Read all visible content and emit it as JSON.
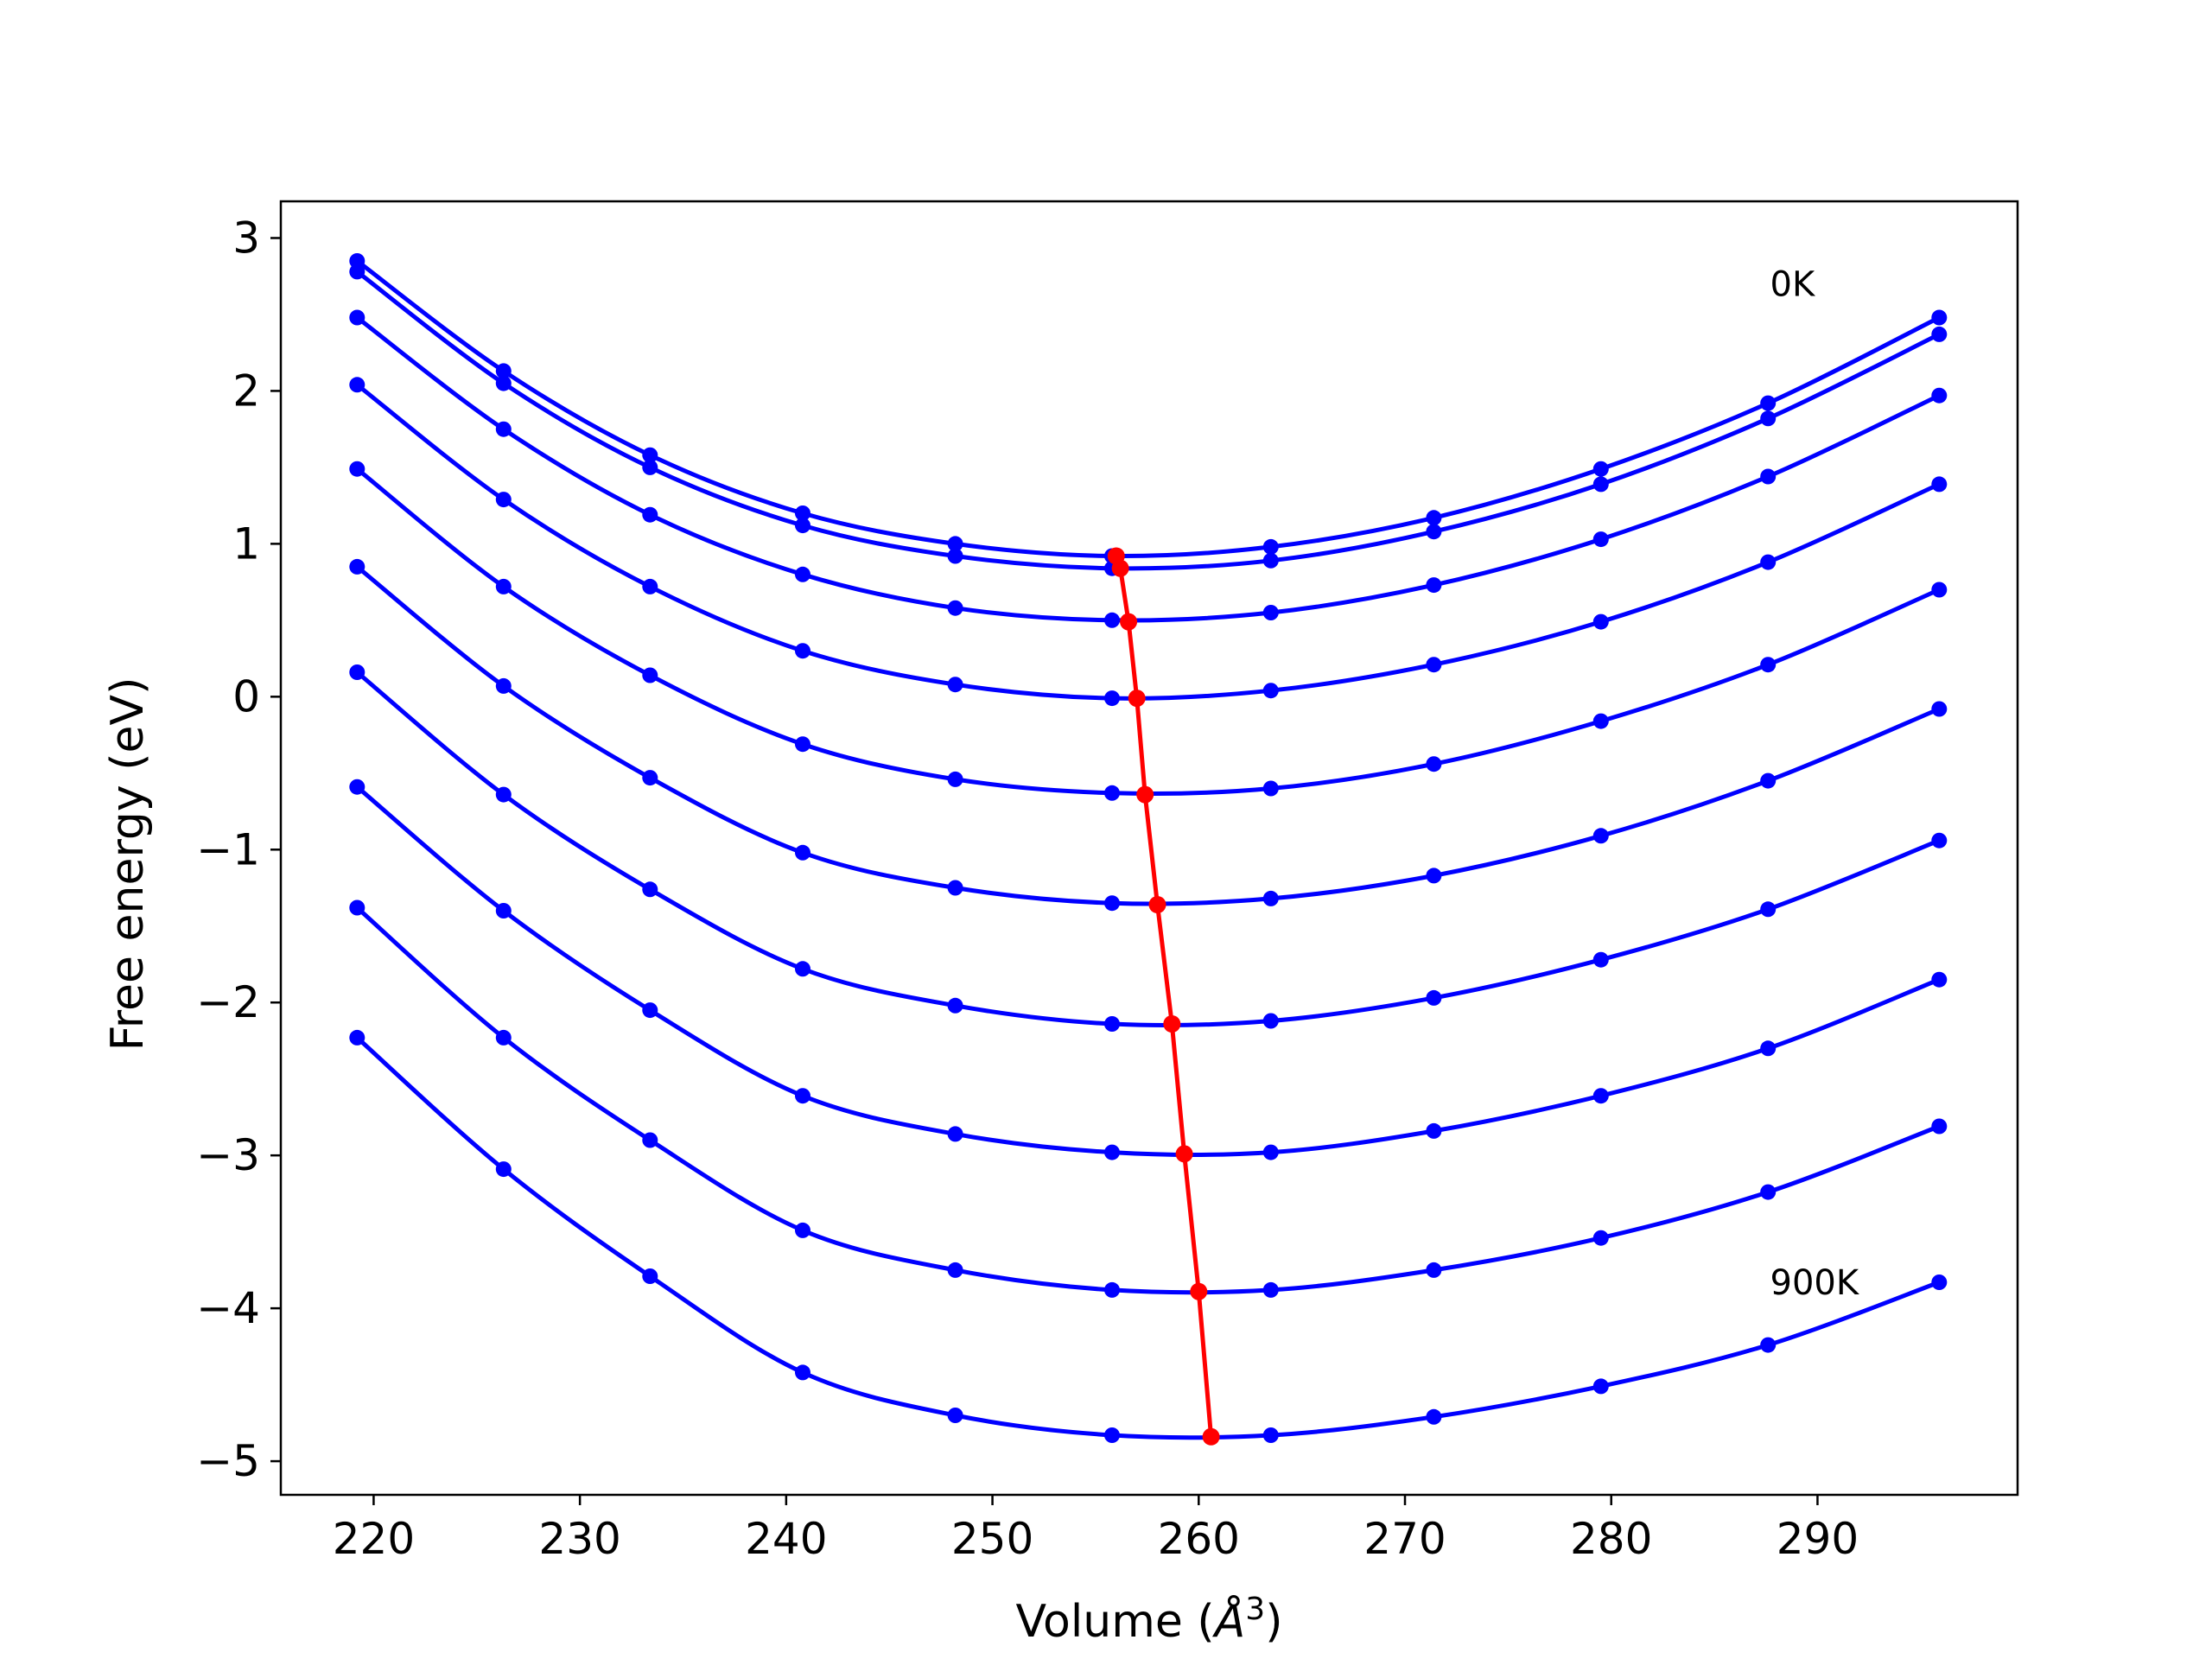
{
  "chart_data": {
    "type": "line",
    "title": "",
    "xlabel_prefix": "Volume (",
    "xlabel_symbol": "Å",
    "xlabel_exponent": "3",
    "xlabel_suffix": ")",
    "ylabel": "Free energy (eV)",
    "xlim": [
      215.5,
      299.7
    ],
    "ylim": [
      -5.22,
      3.24
    ],
    "x_ticks": [
      220,
      230,
      240,
      250,
      260,
      270,
      280,
      290
    ],
    "x_tick_labels": [
      "220",
      "230",
      "240",
      "250",
      "260",
      "270",
      "280",
      "290"
    ],
    "y_ticks": [
      3,
      2,
      1,
      0,
      -1,
      -2,
      -3,
      -4,
      -5
    ],
    "y_tick_labels": [
      "3",
      "2",
      "1",
      "0",
      "−1",
      "−2",
      "−3",
      "−4",
      "−5"
    ],
    "annotations": [
      {
        "text": "0K",
        "x": 287.7,
        "y": 2.62
      },
      {
        "text": "900K",
        "x": 287.7,
        "y": -3.91
      }
    ],
    "x": [
      219.2,
      226.3,
      233.4,
      240.8,
      248.2,
      255.8,
      263.5,
      271.4,
      279.5,
      287.6,
      295.9
    ],
    "series": [
      {
        "color": "#0000ff",
        "values": [
          2.85,
          2.13,
          1.58,
          1.2,
          1.0,
          0.92,
          0.98,
          1.17,
          1.49,
          1.92,
          2.48
        ]
      },
      {
        "color": "#0000ff",
        "values": [
          2.78,
          2.05,
          1.5,
          1.12,
          0.92,
          0.84,
          0.89,
          1.08,
          1.39,
          1.82,
          2.37
        ]
      },
      {
        "color": "#0000ff",
        "values": [
          2.48,
          1.75,
          1.19,
          0.8,
          0.58,
          0.5,
          0.55,
          0.73,
          1.03,
          1.44,
          1.97
        ]
      },
      {
        "color": "#0000ff",
        "values": [
          2.04,
          1.29,
          0.72,
          0.3,
          0.08,
          -0.01,
          0.04,
          0.21,
          0.49,
          0.88,
          1.39
        ]
      },
      {
        "color": "#0000ff",
        "values": [
          1.49,
          0.72,
          0.14,
          -0.31,
          -0.54,
          -0.63,
          -0.6,
          -0.44,
          -0.16,
          0.21,
          0.7
        ]
      },
      {
        "color": "#0000ff",
        "values": [
          0.85,
          0.07,
          -0.53,
          -1.02,
          -1.25,
          -1.35,
          -1.32,
          -1.17,
          -0.91,
          -0.55,
          -0.08
        ]
      },
      {
        "color": "#0000ff",
        "values": [
          0.16,
          -0.64,
          -1.26,
          -1.78,
          -2.02,
          -2.14,
          -2.12,
          -1.97,
          -1.72,
          -1.39,
          -0.94
        ]
      },
      {
        "color": "#0000ff",
        "values": [
          -0.59,
          -1.4,
          -2.05,
          -2.61,
          -2.86,
          -2.98,
          -2.98,
          -2.84,
          -2.61,
          -2.3,
          -1.85
        ]
      },
      {
        "color": "#0000ff",
        "values": [
          -1.38,
          -2.23,
          -2.9,
          -3.49,
          -3.75,
          -3.88,
          -3.88,
          -3.75,
          -3.54,
          -3.24,
          -2.81
        ]
      },
      {
        "color": "#0000ff",
        "values": [
          -2.23,
          -3.09,
          -3.79,
          -4.42,
          -4.7,
          -4.83,
          -4.83,
          -4.71,
          -4.51,
          -4.24,
          -3.83
        ]
      }
    ],
    "minimum_path": {
      "color": "#ff0000",
      "x": [
        256.0,
        256.2,
        256.6,
        257.0,
        257.4,
        258.0,
        258.7,
        259.3,
        260.0,
        260.6
      ],
      "y": [
        0.92,
        0.84,
        0.49,
        -0.01,
        -0.64,
        -1.36,
        -2.14,
        -2.99,
        -3.89,
        -4.84
      ]
    }
  }
}
